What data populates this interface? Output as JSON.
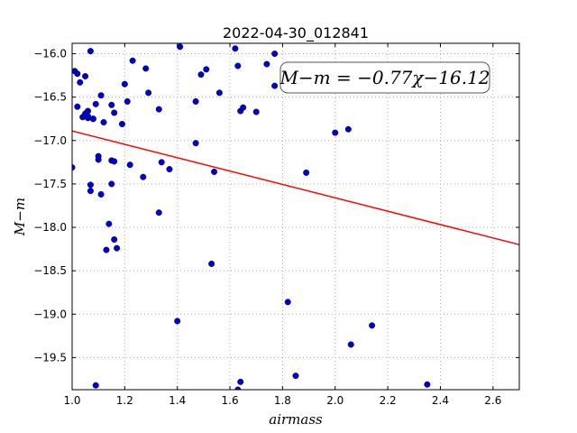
{
  "chart_data": {
    "type": "scatter",
    "title": "2022-04-30_012841",
    "xlabel": "airmass",
    "ylabel": "M−m",
    "xlim": [
      1.0,
      2.7
    ],
    "ylim": [
      -19.87,
      -15.88
    ],
    "xticks": [
      1.0,
      1.2,
      1.4,
      1.6,
      1.8,
      2.0,
      2.2,
      2.4,
      2.6
    ],
    "xtick_labels": [
      "1.0",
      "1.2",
      "1.4",
      "1.6",
      "1.8",
      "2.0",
      "2.2",
      "2.4",
      "2.6"
    ],
    "yticks": [
      -16.0,
      -16.5,
      -17.0,
      -17.5,
      -18.0,
      -18.5,
      -19.0,
      -19.5
    ],
    "ytick_labels": [
      "−16.0",
      "−16.5",
      "−17.0",
      "−17.5",
      "−18.0",
      "−18.5",
      "−19.0",
      "−19.5"
    ],
    "grid": true,
    "annotation": "M−m = −0.77χ−16.12",
    "fit": {
      "slope": -0.77,
      "intercept": -16.12,
      "color": "#ff0000"
    },
    "point_color": "#0000cc",
    "x": [
      1.0,
      1.01,
      1.02,
      1.02,
      1.03,
      1.04,
      1.05,
      1.05,
      1.05,
      1.06,
      1.06,
      1.06,
      1.07,
      1.07,
      1.07,
      1.08,
      1.08,
      1.09,
      1.1,
      1.1,
      1.11,
      1.11,
      1.12,
      1.13,
      1.14,
      1.15,
      1.15,
      1.15,
      1.16,
      1.16,
      1.16,
      1.17,
      1.19,
      1.2,
      1.21,
      1.22,
      1.23,
      1.27,
      1.28,
      1.29,
      1.33,
      1.33,
      1.34,
      1.37,
      1.4,
      1.41,
      1.47,
      1.47,
      1.49,
      1.51,
      1.53,
      1.54,
      1.56,
      1.62,
      1.63,
      1.63,
      1.64,
      1.64,
      1.65,
      1.7,
      1.74,
      1.77,
      1.77,
      1.82,
      1.85,
      1.89,
      2.0,
      2.05,
      2.06,
      2.14,
      2.35,
      1.09
    ],
    "y": [
      -17.31,
      -16.2,
      -16.23,
      -16.61,
      -16.33,
      -16.73,
      -16.71,
      -16.26,
      -16.69,
      -16.66,
      -16.74,
      -16.72,
      -15.97,
      -17.58,
      -17.51,
      -16.75,
      -16.75,
      -16.58,
      -17.22,
      -17.18,
      -17.62,
      -16.48,
      -16.79,
      -18.26,
      -17.96,
      -17.23,
      -17.5,
      -16.59,
      -18.14,
      -16.68,
      -17.24,
      -18.24,
      -16.81,
      -16.35,
      -16.55,
      -17.28,
      -16.08,
      -17.42,
      -16.17,
      -16.45,
      -16.64,
      -17.83,
      -17.25,
      -17.33,
      -19.08,
      -15.92,
      -16.55,
      -17.03,
      -16.24,
      -16.18,
      -18.42,
      -17.36,
      -16.45,
      -15.94,
      -19.87,
      -16.14,
      -19.78,
      -16.66,
      -16.62,
      -16.67,
      -16.12,
      -16.37,
      -16.0,
      -18.86,
      -19.71,
      -17.37,
      -16.91,
      -16.87,
      -19.35,
      -19.13,
      -19.81,
      -19.82
    ]
  }
}
